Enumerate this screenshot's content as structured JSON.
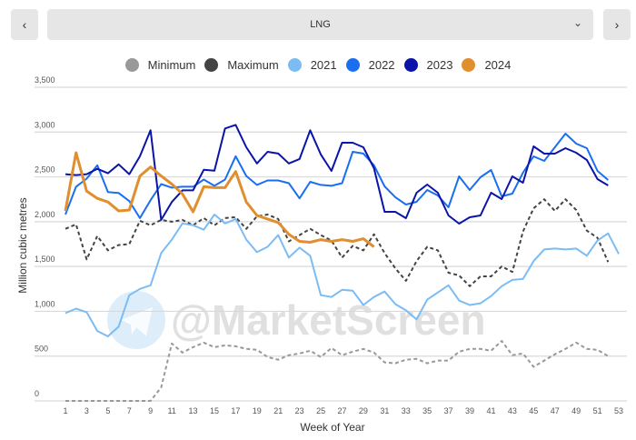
{
  "selector": {
    "value": "LNG",
    "prev_icon": "chevron-left-icon",
    "next_icon": "chevron-right-icon",
    "prev_glyph": "‹",
    "next_glyph": "›",
    "dropdown_glyph": "⌄"
  },
  "watermark": "@MarketScreen",
  "chart_data": {
    "type": "line",
    "xlabel": "Week of Year",
    "ylabel": "Million cubic metres",
    "ylim": [
      0,
      3500
    ],
    "yticks": [
      0,
      500,
      1000,
      1500,
      2000,
      2500,
      3000,
      3500
    ],
    "ytick_labels": [
      "0",
      "500",
      "1,000",
      "1,500",
      "2,000",
      "2,500",
      "3,000",
      "3,500"
    ],
    "xticks": [
      1,
      3,
      5,
      7,
      9,
      11,
      13,
      15,
      17,
      19,
      21,
      23,
      25,
      27,
      29,
      31,
      33,
      35,
      37,
      39,
      41,
      43,
      45,
      47,
      49,
      51,
      53
    ],
    "xlim": [
      1,
      53
    ],
    "grid": "horizontal",
    "legend_position": "top",
    "series": [
      {
        "name": "Minimum",
        "color": "#999999",
        "dashed": true,
        "values": [
          0,
          0,
          0,
          0,
          0,
          0,
          0,
          0,
          0,
          150,
          640,
          540,
          600,
          650,
          600,
          620,
          610,
          580,
          570,
          490,
          460,
          510,
          530,
          560,
          490,
          590,
          510,
          550,
          580,
          540,
          430,
          420,
          460,
          470,
          420,
          450,
          450,
          550,
          580,
          580,
          560,
          670,
          510,
          530,
          380,
          450,
          520,
          580,
          650,
          580,
          570,
          500
        ]
      },
      {
        "name": "Maximum",
        "color": "#444444",
        "dashed": true,
        "values": [
          1920,
          1970,
          1580,
          1840,
          1680,
          1740,
          1750,
          2010,
          1960,
          2020,
          2000,
          2020,
          1960,
          2040,
          1960,
          2040,
          2050,
          1920,
          2060,
          2080,
          2030,
          1780,
          1850,
          1920,
          1850,
          1790,
          1600,
          1730,
          1680,
          1860,
          1650,
          1480,
          1340,
          1560,
          1720,
          1680,
          1430,
          1400,
          1280,
          1390,
          1390,
          1500,
          1440,
          1890,
          2150,
          2250,
          2120,
          2250,
          2130,
          1900,
          1820,
          1550
        ]
      },
      {
        "name": "2021",
        "color": "#7bbcf5",
        "values": [
          980,
          1030,
          990,
          780,
          720,
          830,
          1180,
          1250,
          1290,
          1650,
          1800,
          1980,
          1960,
          1910,
          2080,
          1980,
          2030,
          1800,
          1660,
          1720,
          1850,
          1600,
          1710,
          1620,
          1180,
          1160,
          1240,
          1230,
          1070,
          1160,
          1220,
          1080,
          1010,
          910,
          1130,
          1210,
          1290,
          1120,
          1070,
          1090,
          1170,
          1280,
          1350,
          1360,
          1560,
          1690,
          1700,
          1690,
          1700,
          1620,
          1790,
          1870,
          1640
        ]
      },
      {
        "name": "2022",
        "color": "#1a6ff0",
        "values": [
          2080,
          2390,
          2480,
          2630,
          2330,
          2320,
          2230,
          2040,
          2240,
          2420,
          2380,
          2390,
          2390,
          2470,
          2400,
          2470,
          2730,
          2510,
          2410,
          2460,
          2460,
          2430,
          2260,
          2445,
          2410,
          2400,
          2430,
          2780,
          2760,
          2630,
          2394,
          2273,
          2191,
          2222,
          2354,
          2293,
          2161,
          2506,
          2354,
          2496,
          2577,
          2283,
          2313,
          2546,
          2729,
          2678,
          2830,
          2983,
          2871,
          2820,
          2567,
          2465
        ]
      },
      {
        "name": "2023",
        "color": "#0a14a8",
        "values": [
          2530,
          2520,
          2530,
          2590,
          2540,
          2640,
          2530,
          2730,
          3020,
          2020,
          2220,
          2350,
          2350,
          2580,
          2570,
          3040,
          3080,
          2830,
          2650,
          2780,
          2760,
          2650,
          2700,
          3020,
          2750,
          2567,
          2881,
          2881,
          2830,
          2597,
          2110,
          2110,
          2039,
          2323,
          2415,
          2323,
          2070,
          1978,
          2049,
          2070,
          2323,
          2252,
          2506,
          2435,
          2841,
          2759,
          2759,
          2820,
          2770,
          2688,
          2475,
          2404
        ]
      },
      {
        "name": "2024",
        "color": "#e08e2e",
        "values": [
          2120,
          2770,
          2340,
          2260,
          2220,
          2120,
          2130,
          2510,
          2610,
          2510,
          2420,
          2310,
          2110,
          2390,
          2380,
          2380,
          2560,
          2220,
          2070,
          2030,
          1990,
          1860,
          1780,
          1770,
          1800,
          1780,
          1800,
          1780,
          1810,
          1720
        ]
      }
    ]
  }
}
